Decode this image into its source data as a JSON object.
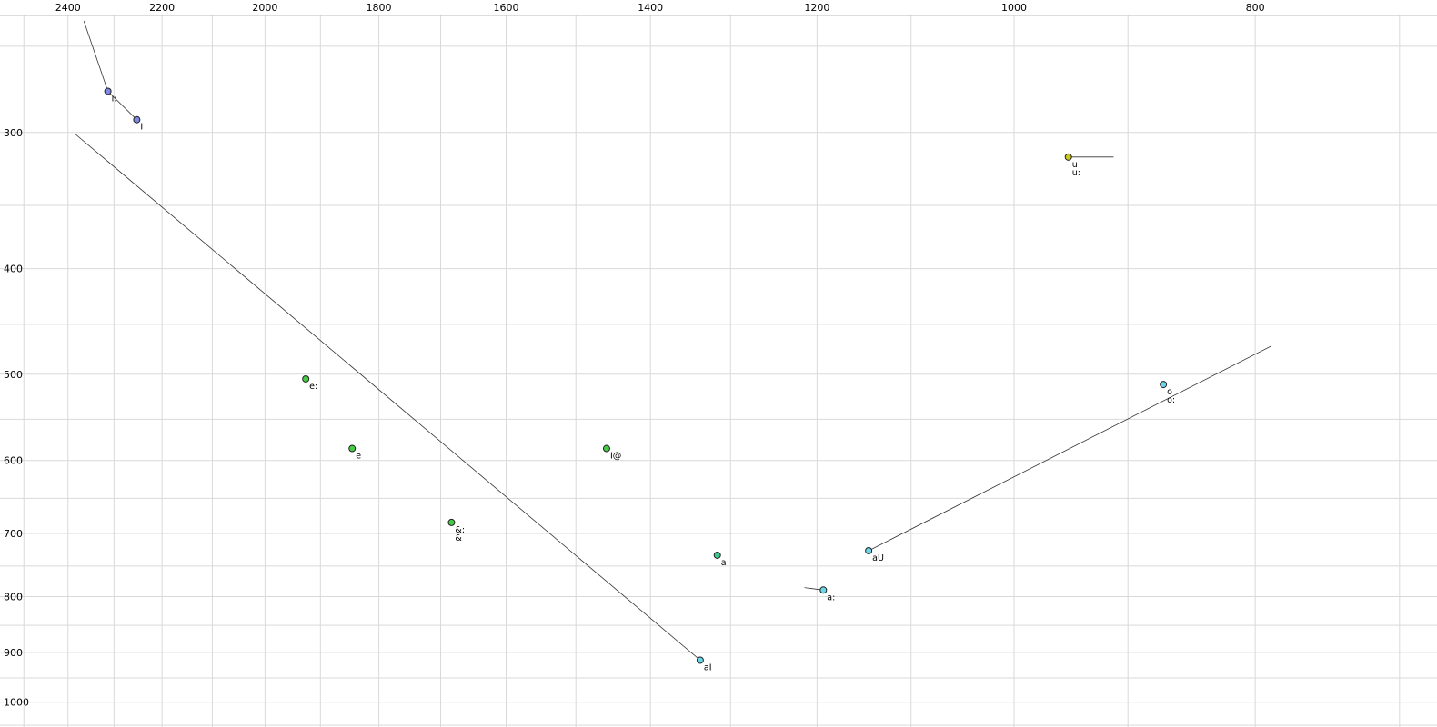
{
  "chart_data": {
    "type": "scatter",
    "description": "Vowel formant plot: F2 (Hz) on reversed log x-axis, F1 (Hz) on log y-axis increasing downward, with diphthong trajectory lines",
    "grid": true,
    "x_axis": {
      "unit_ticks": [
        2400,
        2200,
        2000,
        1800,
        1600,
        1400,
        1200,
        1000,
        800
      ],
      "minor_step": 100,
      "min": 700,
      "max": 2500,
      "scale": "log",
      "direction": "reversed"
    },
    "y_axis": {
      "unit_ticks": [
        300,
        400,
        500,
        600,
        700,
        800,
        900,
        1000
      ],
      "minor_step": 50,
      "min": 250,
      "max": 1050,
      "scale": "log",
      "direction": "down"
    },
    "colors": {
      "trajectory_line": "#333333",
      "gridline": "#d9d9d9",
      "axis_line": "#bbbbbb",
      "point_stroke": "#222222"
    },
    "points": [
      {
        "label": "i:",
        "f1": 275,
        "f2": 2313,
        "color": "#7d88e0"
      },
      {
        "label": "I",
        "f1": 292,
        "f2": 2252,
        "color": "#7d88e0"
      },
      {
        "label": "e:",
        "f1": 505,
        "f2": 1926,
        "color": "#44cc44"
      },
      {
        "label": "e",
        "f1": 585,
        "f2": 1845,
        "color": "#44cc44"
      },
      {
        "label": "&:",
        "label2": "&",
        "f1": 684,
        "f2": 1683,
        "color": "#44cc44"
      },
      {
        "label": "I@",
        "f1": 585,
        "f2": 1458,
        "color": "#44cc44"
      },
      {
        "label": "a",
        "f1": 733,
        "f2": 1316,
        "color": "#3cc98f"
      },
      {
        "label": "a:",
        "f1": 789,
        "f2": 1193,
        "color": "#6cd6e6"
      },
      {
        "label": "aU",
        "f1": 726,
        "f2": 1144,
        "color": "#6cd6e6"
      },
      {
        "label": "aI",
        "f1": 915,
        "f2": 1337,
        "color": "#6cd6e6"
      },
      {
        "label": "o",
        "label2": "o:",
        "f1": 511,
        "f2": 871,
        "color": "#6cd6e6"
      },
      {
        "label": "u",
        "label2": "u:",
        "f1": 316,
        "f2": 951,
        "color": "#c8c820"
      }
    ],
    "trajectories": [
      {
        "name": "i-onset",
        "from": {
          "f2": 2365,
          "f1": 237
        },
        "to": {
          "f2": 2313,
          "f1": 275
        }
      },
      {
        "name": "i-to-I",
        "from": {
          "f2": 2313,
          "f1": 275
        },
        "to": {
          "f2": 2252,
          "f1": 292
        }
      },
      {
        "name": "aI-glide",
        "from": {
          "f2": 2384,
          "f1": 301
        },
        "to": {
          "f2": 1337,
          "f1": 915
        }
      },
      {
        "name": "aU-glide",
        "from": {
          "f2": 1144,
          "f1": 726
        },
        "to": {
          "f2": 788,
          "f1": 471
        }
      },
      {
        "name": "u-glide",
        "from": {
          "f2": 951,
          "f1": 316
        },
        "to": {
          "f2": 912,
          "f1": 316
        }
      },
      {
        "name": "a-onset",
        "from": {
          "f2": 1214,
          "f1": 785
        },
        "to": {
          "f2": 1193,
          "f1": 789
        }
      }
    ]
  }
}
